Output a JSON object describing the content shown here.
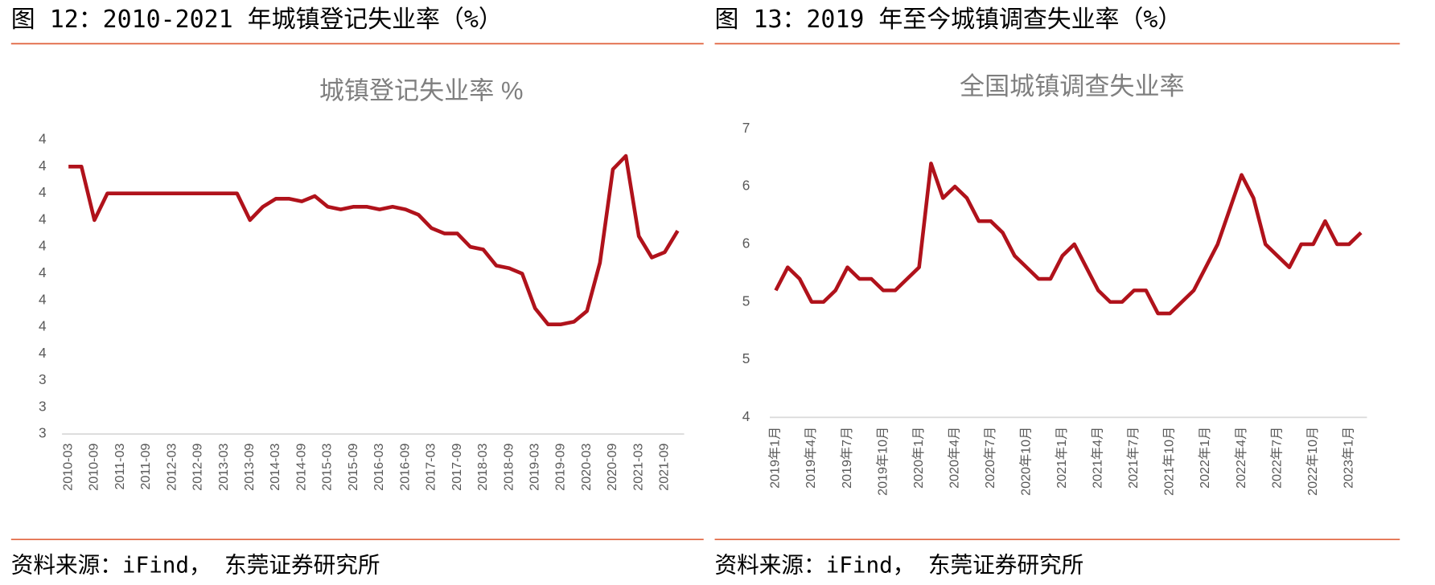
{
  "chart_data": [
    {
      "type": "line",
      "caption": "图 12：2010-2021 年城镇登记失业率（%）",
      "title": "城镇登记失业率 %",
      "source": "资料来源：iFind， 东莞证券研究所",
      "categories": [
        "2010-03",
        null,
        "2010-09",
        null,
        "2011-03",
        null,
        "2011-09",
        null,
        "2012-03",
        null,
        "2012-09",
        null,
        "2013-03",
        null,
        "2013-09",
        null,
        "2014-03",
        null,
        "2014-09",
        null,
        "2015-03",
        null,
        "2015-09",
        null,
        "2016-03",
        null,
        "2016-09",
        null,
        "2017-03",
        null,
        "2017-09",
        null,
        "2018-03",
        null,
        "2018-09",
        null,
        "2019-03",
        null,
        "2019-09",
        null,
        "2020-03",
        null,
        "2020-09",
        null,
        "2021-03",
        null,
        "2021-09",
        null
      ],
      "values": [
        4.2,
        4.2,
        4.0,
        4.1,
        4.1,
        4.1,
        4.1,
        4.1,
        4.1,
        4.1,
        4.1,
        4.1,
        4.1,
        4.1,
        4.0,
        4.05,
        4.08,
        4.08,
        4.07,
        4.09,
        4.05,
        4.04,
        4.05,
        4.05,
        4.04,
        4.05,
        4.04,
        4.02,
        3.97,
        3.95,
        3.95,
        3.9,
        3.89,
        3.83,
        3.82,
        3.8,
        3.67,
        3.61,
        3.61,
        3.62,
        3.66,
        3.84,
        4.19,
        4.24,
        3.94,
        3.86,
        3.88,
        3.96
      ],
      "color": "#b0121b",
      "ylim": [
        3.2,
        4.3
      ],
      "yticks": [
        {
          "value": 3.2,
          "label": "3"
        },
        {
          "value": 3.3,
          "label": "3"
        },
        {
          "value": 3.4,
          "label": "3"
        },
        {
          "value": 3.5,
          "label": "4"
        },
        {
          "value": 3.6,
          "label": "4"
        },
        {
          "value": 3.7,
          "label": "4"
        },
        {
          "value": 3.8,
          "label": "4"
        },
        {
          "value": 3.9,
          "label": "4"
        },
        4,
        {
          "value": 4.1,
          "label": "4"
        },
        {
          "value": 4.2,
          "label": "4"
        },
        {
          "value": 4.3,
          "label": "4"
        }
      ]
    },
    {
      "type": "line",
      "caption": "图 13：2019 年至今城镇调查失业率（%）",
      "title": "全国城镇调查失业率",
      "source": "资料来源：iFind， 东莞证券研究所",
      "categories": [
        "2019年1月",
        null,
        null,
        "2019年4月",
        null,
        null,
        "2019年7月",
        null,
        null,
        "2019年10月",
        null,
        null,
        "2020年1月",
        null,
        null,
        "2020年4月",
        null,
        null,
        "2020年7月",
        null,
        null,
        "2020年10月",
        null,
        null,
        "2021年1月",
        null,
        null,
        "2021年4月",
        null,
        null,
        "2021年7月",
        null,
        null,
        "2021年10月",
        null,
        null,
        "2022年1月",
        null,
        null,
        "2022年4月",
        null,
        null,
        "2022年7月",
        null,
        null,
        "2022年10月",
        null,
        null,
        "2023年1月",
        null
      ],
      "values": [
        5.1,
        5.3,
        5.2,
        5.0,
        5.0,
        5.1,
        5.3,
        5.2,
        5.2,
        5.1,
        5.1,
        5.2,
        5.3,
        6.2,
        5.9,
        6.0,
        5.9,
        5.7,
        5.7,
        5.6,
        5.4,
        5.3,
        5.2,
        5.2,
        5.4,
        5.5,
        5.3,
        5.1,
        5.0,
        5.0,
        5.1,
        5.1,
        4.9,
        4.9,
        5.0,
        5.1,
        5.3,
        5.5,
        5.8,
        6.1,
        5.9,
        5.5,
        5.4,
        5.3,
        5.5,
        5.5,
        5.7,
        5.5,
        5.5,
        5.6
      ],
      "color": "#b0121b",
      "ylim": [
        4,
        6.5
      ],
      "yticks": [
        4,
        {
          "value": 4.5,
          "label": "5"
        },
        5,
        {
          "value": 5.5,
          "label": "6"
        },
        6,
        {
          "value": 6.5,
          "label": "7"
        }
      ]
    }
  ]
}
